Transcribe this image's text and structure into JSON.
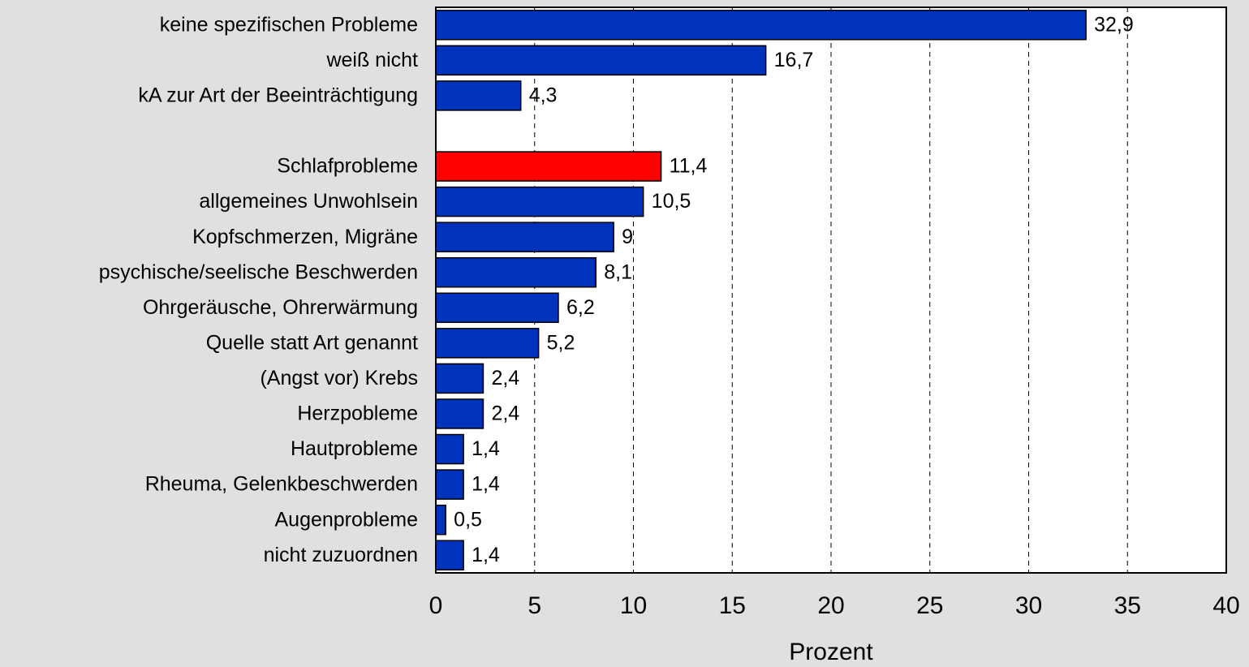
{
  "chart_data": {
    "type": "barh",
    "xlabel": "Prozent",
    "categories": [
      "keine spezifischen Probleme",
      "weiß nicht",
      "kA zur Art der Beeinträchtigung",
      null,
      "Schlafprobleme",
      "allgemeines Unwohlsein",
      "Kopfschmerzen, Migräne",
      "psychische/seelische Beschwerden",
      "Ohrgeräusche, Ohrerwärmung",
      "Quelle statt Art genannt",
      "(Angst vor) Krebs",
      "Herzpobleme",
      "Hautprobleme",
      "Rheuma, Gelenkbeschwerden",
      "Augenprobleme",
      "nicht zuzuordnen"
    ],
    "values": [
      32.9,
      16.7,
      4.3,
      null,
      11.4,
      10.5,
      9,
      8.1,
      6.2,
      5.2,
      2.4,
      2.4,
      1.4,
      1.4,
      0.5,
      1.4
    ],
    "value_labels": [
      "32,9",
      "16,7",
      "4,3",
      null,
      "11,4",
      "10,5",
      "9",
      "8,1",
      "6,2",
      "5,2",
      "2,4",
      "2,4",
      "1,4",
      "1,4",
      "0,5",
      "1,4"
    ],
    "colors": [
      "#0033bb",
      "#0033bb",
      "#0033bb",
      null,
      "#ff0000",
      "#0033bb",
      "#0033bb",
      "#0033bb",
      "#0033bb",
      "#0033bb",
      "#0033bb",
      "#0033bb",
      "#0033bb",
      "#0033bb",
      "#0033bb",
      "#0033bb"
    ],
    "xlim": [
      0,
      40
    ],
    "xticks": [
      0,
      5,
      10,
      15,
      20,
      25,
      30,
      35,
      40
    ],
    "grid": true
  }
}
